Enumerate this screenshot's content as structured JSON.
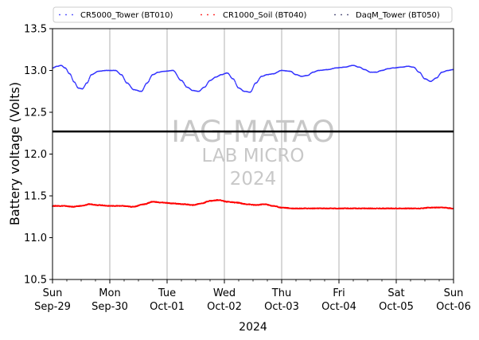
{
  "chart_data": {
    "type": "line",
    "title": "",
    "xlabel": "2024",
    "ylabel": "Battery voltage (Volts)",
    "ylim": [
      10.5,
      13.5
    ],
    "yticks": [
      10.5,
      11.0,
      11.5,
      12.0,
      12.5,
      13.0,
      13.5
    ],
    "ytick_labels": [
      "10.5",
      "11.0",
      "11.5",
      "12.0",
      "12.5",
      "13.0",
      "13.5"
    ],
    "xlim_days": [
      0,
      7
    ],
    "x_unit": "days since Sun Sep-29 2024 00:00",
    "xticks": [
      {
        "day": 0,
        "line1": "Sun",
        "line2": "Sep-29"
      },
      {
        "day": 1,
        "line1": "Mon",
        "line2": "Sep-30"
      },
      {
        "day": 2,
        "line1": "Tue",
        "line2": "Oct-01"
      },
      {
        "day": 3,
        "line1": "Wed",
        "line2": "Oct-02"
      },
      {
        "day": 4,
        "line1": "Thu",
        "line2": "Oct-03"
      },
      {
        "day": 5,
        "line1": "Fri",
        "line2": "Oct-04"
      },
      {
        "day": 6,
        "line1": "Sat",
        "line2": "Oct-05"
      },
      {
        "day": 7,
        "line1": "Sun",
        "line2": "Oct-06"
      }
    ],
    "minor_tick_step_days": 0.25,
    "grid": "vertical at day boundaries",
    "legend": {
      "placement": "top",
      "entries": [
        {
          "name": "CR5000_Tower (BT010)",
          "color": "#3333ff"
        },
        {
          "name": "CR1000_Soil (BT040)",
          "color": "#ff0000"
        },
        {
          "name": "DaqM_Tower (BT050)",
          "color": "#333366"
        }
      ]
    },
    "reference_line": {
      "y": 12.27,
      "color": "#000000"
    },
    "watermark": [
      "IAG-MATAO",
      "LAB MICRO",
      "2024"
    ],
    "series": [
      {
        "name": "CR5000_Tower (BT010)",
        "color": "#3333ff",
        "x": [
          0.0,
          0.08,
          0.15,
          0.22,
          0.3,
          0.38,
          0.45,
          0.52,
          0.6,
          0.68,
          0.8,
          0.95,
          1.1,
          1.2,
          1.3,
          1.42,
          1.55,
          1.65,
          1.75,
          1.85,
          1.95,
          2.1,
          2.25,
          2.35,
          2.45,
          2.55,
          2.65,
          2.75,
          2.85,
          2.95,
          3.05,
          3.15,
          3.25,
          3.35,
          3.45,
          3.55,
          3.65,
          3.75,
          3.85,
          4.0,
          4.15,
          4.25,
          4.35,
          4.45,
          4.55,
          4.65,
          4.8,
          4.95,
          5.1,
          5.25,
          5.35,
          5.45,
          5.55,
          5.65,
          5.75,
          5.85,
          5.95,
          6.1,
          6.2,
          6.3,
          6.4,
          6.5,
          6.6,
          6.7,
          6.8,
          6.9,
          7.0
        ],
        "values": [
          13.03,
          13.05,
          13.06,
          13.03,
          12.96,
          12.86,
          12.79,
          12.78,
          12.85,
          12.95,
          12.99,
          13.0,
          13.0,
          12.95,
          12.85,
          12.77,
          12.75,
          12.85,
          12.95,
          12.98,
          12.99,
          13.0,
          12.88,
          12.8,
          12.76,
          12.75,
          12.8,
          12.88,
          12.92,
          12.95,
          12.97,
          12.9,
          12.79,
          12.75,
          12.74,
          12.85,
          12.93,
          12.95,
          12.96,
          13.0,
          12.99,
          12.95,
          12.93,
          12.94,
          12.98,
          13.0,
          13.01,
          13.03,
          13.04,
          13.06,
          13.04,
          13.01,
          12.98,
          12.98,
          13.0,
          13.02,
          13.03,
          13.04,
          13.05,
          13.04,
          12.98,
          12.9,
          12.87,
          12.91,
          12.98,
          13.0,
          13.01
        ]
      },
      {
        "name": "CR1000_Soil (BT040)",
        "color": "#ff0000",
        "x": [
          0.0,
          0.2,
          0.35,
          0.5,
          0.65,
          0.8,
          1.0,
          1.2,
          1.4,
          1.6,
          1.75,
          1.9,
          2.1,
          2.3,
          2.45,
          2.6,
          2.75,
          2.9,
          3.05,
          3.2,
          3.4,
          3.55,
          3.7,
          3.85,
          4.0,
          4.2,
          4.4,
          4.6,
          4.8,
          5.0,
          5.2,
          5.4,
          5.6,
          5.8,
          6.0,
          6.2,
          6.4,
          6.6,
          6.8,
          7.0
        ],
        "values": [
          11.38,
          11.38,
          11.37,
          11.38,
          11.4,
          11.39,
          11.38,
          11.38,
          11.37,
          11.4,
          11.43,
          11.42,
          11.41,
          11.4,
          11.39,
          11.41,
          11.44,
          11.45,
          11.43,
          11.42,
          11.4,
          11.39,
          11.4,
          11.38,
          11.36,
          11.35,
          11.35,
          11.35,
          11.35,
          11.35,
          11.35,
          11.35,
          11.35,
          11.35,
          11.35,
          11.35,
          11.35,
          11.36,
          11.36,
          11.35
        ]
      },
      {
        "name": "DaqM_Tower (BT050)",
        "color": "#333366",
        "x": [],
        "values": []
      }
    ]
  }
}
